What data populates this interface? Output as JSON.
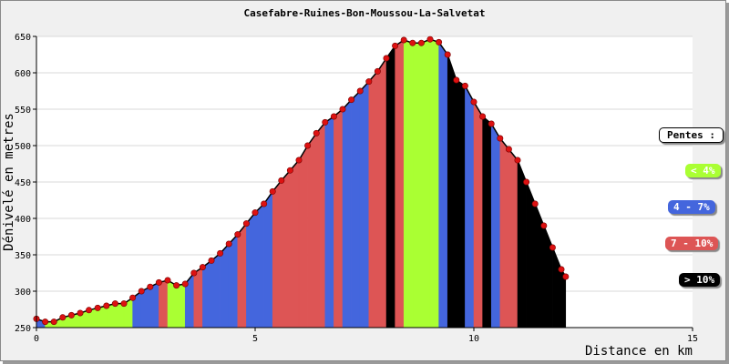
{
  "chart_data": {
    "type": "area",
    "title": "Casefabre-Ruines-Bon-Moussou-La-Salvetat",
    "xlabel": "Distance en km",
    "ylabel": "Dénivelé en metres",
    "xlim": [
      0,
      15
    ],
    "ylim": [
      250,
      650
    ],
    "xticks": [
      "0",
      "5",
      "10",
      "15"
    ],
    "yticks": [
      "250",
      "300",
      "350",
      "400",
      "450",
      "500",
      "550",
      "600",
      "650"
    ],
    "grid": true,
    "legend_position": "right",
    "x": [
      0,
      0.2,
      0.4,
      0.6,
      0.8,
      1.0,
      1.2,
      1.4,
      1.6,
      1.8,
      2.0,
      2.2,
      2.4,
      2.6,
      2.8,
      3.0,
      3.2,
      3.4,
      3.6,
      3.8,
      4.0,
      4.2,
      4.4,
      4.6,
      4.8,
      5.0,
      5.2,
      5.4,
      5.6,
      5.8,
      6.0,
      6.2,
      6.4,
      6.6,
      6.8,
      7.0,
      7.2,
      7.4,
      7.6,
      7.8,
      8.0,
      8.2,
      8.4,
      8.6,
      8.8,
      9.0,
      9.2,
      9.4,
      9.6,
      9.8,
      10.0,
      10.2,
      10.4,
      10.6,
      10.8,
      11.0,
      11.2,
      11.4,
      11.6,
      11.8,
      12.0,
      12.1
    ],
    "y": [
      262,
      258,
      258,
      264,
      267,
      270,
      274,
      277,
      280,
      283,
      283,
      291,
      300,
      306,
      312,
      315,
      308,
      310,
      325,
      333,
      342,
      352,
      365,
      378,
      393,
      408,
      420,
      437,
      452,
      466,
      480,
      500,
      517,
      532,
      540,
      550,
      563,
      575,
      588,
      602,
      620,
      637,
      645,
      641,
      641,
      646,
      642,
      625,
      590,
      582,
      560,
      540,
      530,
      510,
      495,
      480,
      450,
      420,
      390,
      360,
      330,
      320
    ],
    "slopes": [
      1,
      0,
      0,
      0,
      0,
      0,
      0,
      0,
      0,
      0,
      0,
      1,
      1,
      1,
      2,
      0,
      0,
      1,
      2,
      1,
      1,
      1,
      1,
      2,
      1,
      1,
      1,
      2,
      2,
      2,
      2,
      2,
      2,
      1,
      2,
      1,
      1,
      1,
      2,
      2,
      3,
      2,
      0,
      0,
      0,
      0,
      1,
      3,
      3,
      1,
      2,
      3,
      1,
      2,
      2,
      3,
      3,
      3,
      3,
      3,
      3,
      0
    ],
    "slope_categories": [
      {
        "label": "< 4%",
        "color": "#aaff33"
      },
      {
        "label": "4 - 7%",
        "color": "#4466dd"
      },
      {
        "label": "7 - 10%",
        "color": "#dd5555"
      },
      {
        "label": "> 10%",
        "color": "#000000"
      }
    ],
    "legend_title": "Pentes :",
    "marker_color": "#dd1111",
    "line_color": "#000000"
  }
}
